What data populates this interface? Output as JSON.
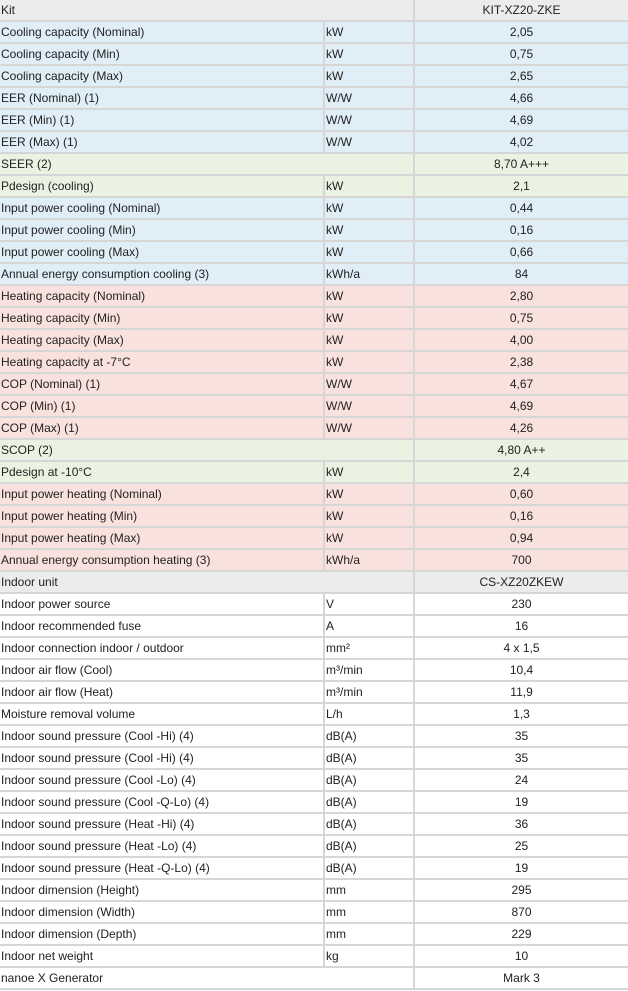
{
  "colors": {
    "blue": "#dfeef7",
    "green": "#eaf3e1",
    "pink": "#f9e1dd",
    "grey": "#ececec",
    "white": "#ffffff",
    "border": "#d6d6d6"
  },
  "rows": [
    {
      "label": "Kit",
      "unit": null,
      "value": "KIT-XZ20-ZKE",
      "color": "grey"
    },
    {
      "label": "Cooling capacity (Nominal)",
      "unit": "kW",
      "value": "2,05",
      "color": "blue"
    },
    {
      "label": "Cooling capacity (Min)",
      "unit": "kW",
      "value": "0,75",
      "color": "blue"
    },
    {
      "label": "Cooling capacity (Max)",
      "unit": "kW",
      "value": "2,65",
      "color": "blue"
    },
    {
      "label": "EER (Nominal) (1)",
      "unit": "W/W",
      "value": "4,66",
      "color": "blue"
    },
    {
      "label": "EER (Min) (1)",
      "unit": "W/W",
      "value": "4,69",
      "color": "blue"
    },
    {
      "label": "EER (Max) (1)",
      "unit": "W/W",
      "value": "4,02",
      "color": "blue"
    },
    {
      "label": "SEER (2)",
      "unit": null,
      "value": "8,70 A+++",
      "color": "green"
    },
    {
      "label": "Pdesign (cooling)",
      "unit": "kW",
      "value": "2,1",
      "color": "green"
    },
    {
      "label": "Input power cooling (Nominal)",
      "unit": "kW",
      "value": "0,44",
      "color": "blue"
    },
    {
      "label": "Input power cooling (Min)",
      "unit": "kW",
      "value": "0,16",
      "color": "blue"
    },
    {
      "label": "Input power cooling (Max)",
      "unit": "kW",
      "value": "0,66",
      "color": "blue"
    },
    {
      "label": "Annual energy consumption cooling (3)",
      "unit": "kWh/a",
      "value": "84",
      "color": "blue"
    },
    {
      "label": "Heating capacity (Nominal)",
      "unit": "kW",
      "value": "2,80",
      "color": "pink"
    },
    {
      "label": "Heating capacity (Min)",
      "unit": "kW",
      "value": "0,75",
      "color": "pink"
    },
    {
      "label": "Heating capacity (Max)",
      "unit": "kW",
      "value": "4,00",
      "color": "pink"
    },
    {
      "label": "Heating capacity at -7°C",
      "unit": "kW",
      "value": "2,38",
      "color": "pink"
    },
    {
      "label": "COP (Nominal) (1)",
      "unit": "W/W",
      "value": "4,67",
      "color": "pink"
    },
    {
      "label": "COP (Min) (1)",
      "unit": "W/W",
      "value": "4,69",
      "color": "pink"
    },
    {
      "label": "COP (Max) (1)",
      "unit": "W/W",
      "value": "4,26",
      "color": "pink"
    },
    {
      "label": "SCOP (2)",
      "unit": null,
      "value": "4,80 A++",
      "color": "green"
    },
    {
      "label": "Pdesign at -10°C",
      "unit": "kW",
      "value": "2,4",
      "color": "green"
    },
    {
      "label": "Input power heating (Nominal)",
      "unit": "kW",
      "value": "0,60",
      "color": "pink"
    },
    {
      "label": "Input power heating (Min)",
      "unit": "kW",
      "value": "0,16",
      "color": "pink"
    },
    {
      "label": "Input power heating (Max)",
      "unit": "kW",
      "value": "0,94",
      "color": "pink"
    },
    {
      "label": "Annual energy consumption heating (3)",
      "unit": "kWh/a",
      "value": "700",
      "color": "pink"
    },
    {
      "label": "Indoor unit",
      "unit": null,
      "value": "CS-XZ20ZKEW",
      "color": "grey"
    },
    {
      "label": "Indoor power source",
      "unit": "V",
      "value": "230",
      "color": "white"
    },
    {
      "label": "Indoor recommended fuse",
      "unit": "A",
      "value": "16",
      "color": "white"
    },
    {
      "label": "Indoor connection indoor / outdoor",
      "unit": "mm²",
      "value": "4 x 1,5",
      "color": "white"
    },
    {
      "label": "Indoor air flow (Cool)",
      "unit": "m³/min",
      "value": "10,4",
      "color": "white"
    },
    {
      "label": "Indoor air flow (Heat)",
      "unit": "m³/min",
      "value": "11,9",
      "color": "white"
    },
    {
      "label": "Moisture removal volume",
      "unit": "L/h",
      "value": "1,3",
      "color": "white"
    },
    {
      "label": "Indoor sound pressure (Cool -Hi) (4)",
      "unit": "dB(A)",
      "value": "35",
      "color": "white"
    },
    {
      "label": "Indoor sound pressure (Cool -Hi) (4)",
      "unit": "dB(A)",
      "value": "35",
      "color": "white"
    },
    {
      "label": "Indoor sound pressure (Cool -Lo) (4)",
      "unit": "dB(A)",
      "value": "24",
      "color": "white"
    },
    {
      "label": "Indoor sound pressure (Cool -Q-Lo) (4)",
      "unit": "dB(A)",
      "value": "19",
      "color": "white"
    },
    {
      "label": "Indoor sound pressure (Heat -Hi) (4)",
      "unit": "dB(A)",
      "value": "36",
      "color": "white"
    },
    {
      "label": "Indoor sound pressure (Heat -Lo) (4)",
      "unit": "dB(A)",
      "value": "25",
      "color": "white"
    },
    {
      "label": "Indoor sound pressure (Heat -Q-Lo) (4)",
      "unit": "dB(A)",
      "value": "19",
      "color": "white"
    },
    {
      "label": "Indoor dimension (Height)",
      "unit": "mm",
      "value": "295",
      "color": "white"
    },
    {
      "label": "Indoor dimension (Width)",
      "unit": "mm",
      "value": "870",
      "color": "white"
    },
    {
      "label": "Indoor dimension (Depth)",
      "unit": "mm",
      "value": "229",
      "color": "white"
    },
    {
      "label": "Indoor net weight",
      "unit": "kg",
      "value": "10",
      "color": "white"
    },
    {
      "label": "nanoe X Generator",
      "unit": null,
      "value": "Mark 3",
      "color": "white"
    }
  ]
}
